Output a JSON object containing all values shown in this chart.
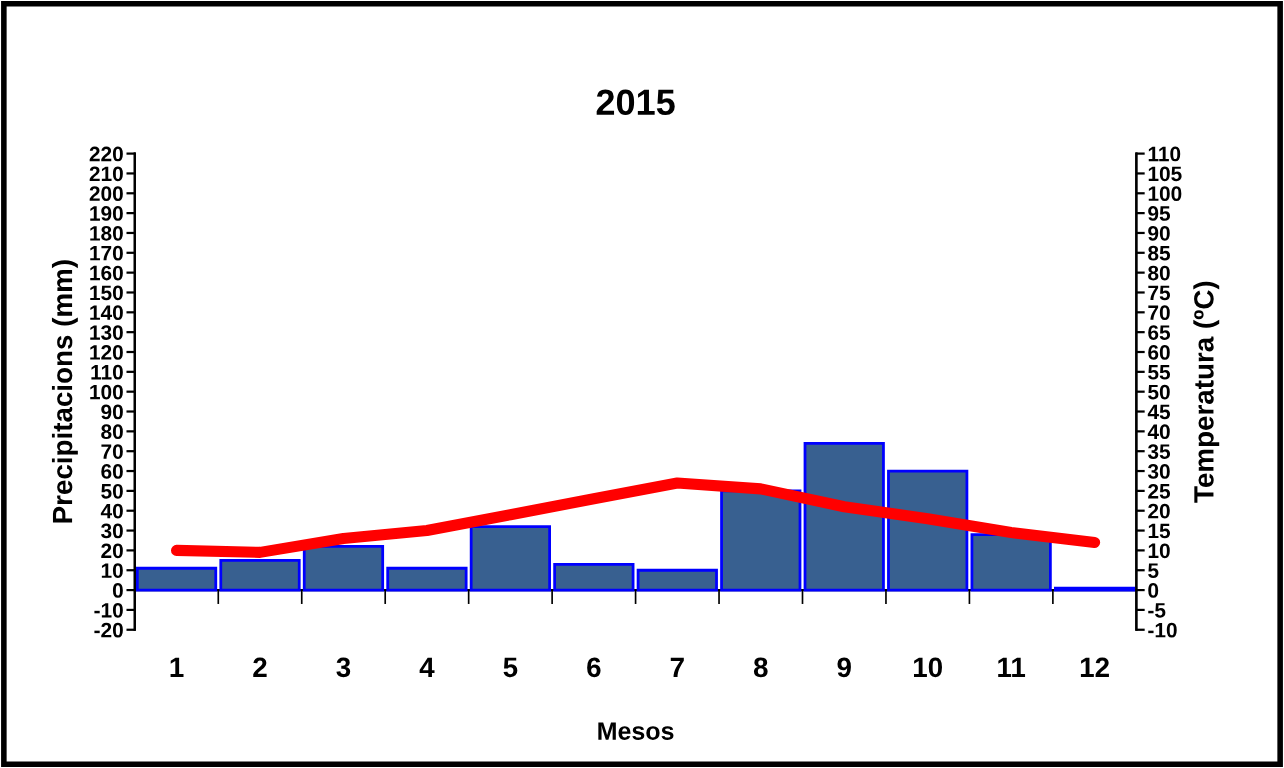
{
  "chart_data": {
    "type": "bar",
    "title": "2015",
    "xlabel": "Mesos",
    "ylabel": "Precipitacions (mm)",
    "y2label": "Temperatura (ºC)",
    "categories": [
      "1",
      "2",
      "3",
      "4",
      "5",
      "6",
      "7",
      "8",
      "9",
      "10",
      "11",
      "12"
    ],
    "series": [
      {
        "color": "#386090",
        "values": [
          11,
          15,
          22,
          11,
          32,
          13,
          10,
          50,
          74,
          60,
          28,
          1
        ]
      },
      {
        "type": "line",
        "axis": "y2",
        "color": "#ff0000",
        "values": [
          10,
          9.5,
          13,
          15,
          19,
          23,
          27,
          25.5,
          21,
          18,
          14.5,
          12
        ]
      }
    ],
    "ylim": [
      -20,
      220
    ],
    "yticks": [
      -20,
      -10,
      0,
      10,
      20,
      30,
      40,
      50,
      60,
      70,
      80,
      90,
      100,
      110,
      120,
      130,
      140,
      150,
      160,
      170,
      180,
      190,
      200,
      210,
      220
    ],
    "y2lim": [
      -10,
      110
    ],
    "y2ticks": [
      -10,
      -5,
      0,
      5,
      10,
      15,
      20,
      25,
      30,
      35,
      40,
      45,
      50,
      55,
      60,
      65,
      70,
      75,
      80,
      85,
      90,
      95,
      100,
      105,
      110
    ],
    "legend": false
  }
}
